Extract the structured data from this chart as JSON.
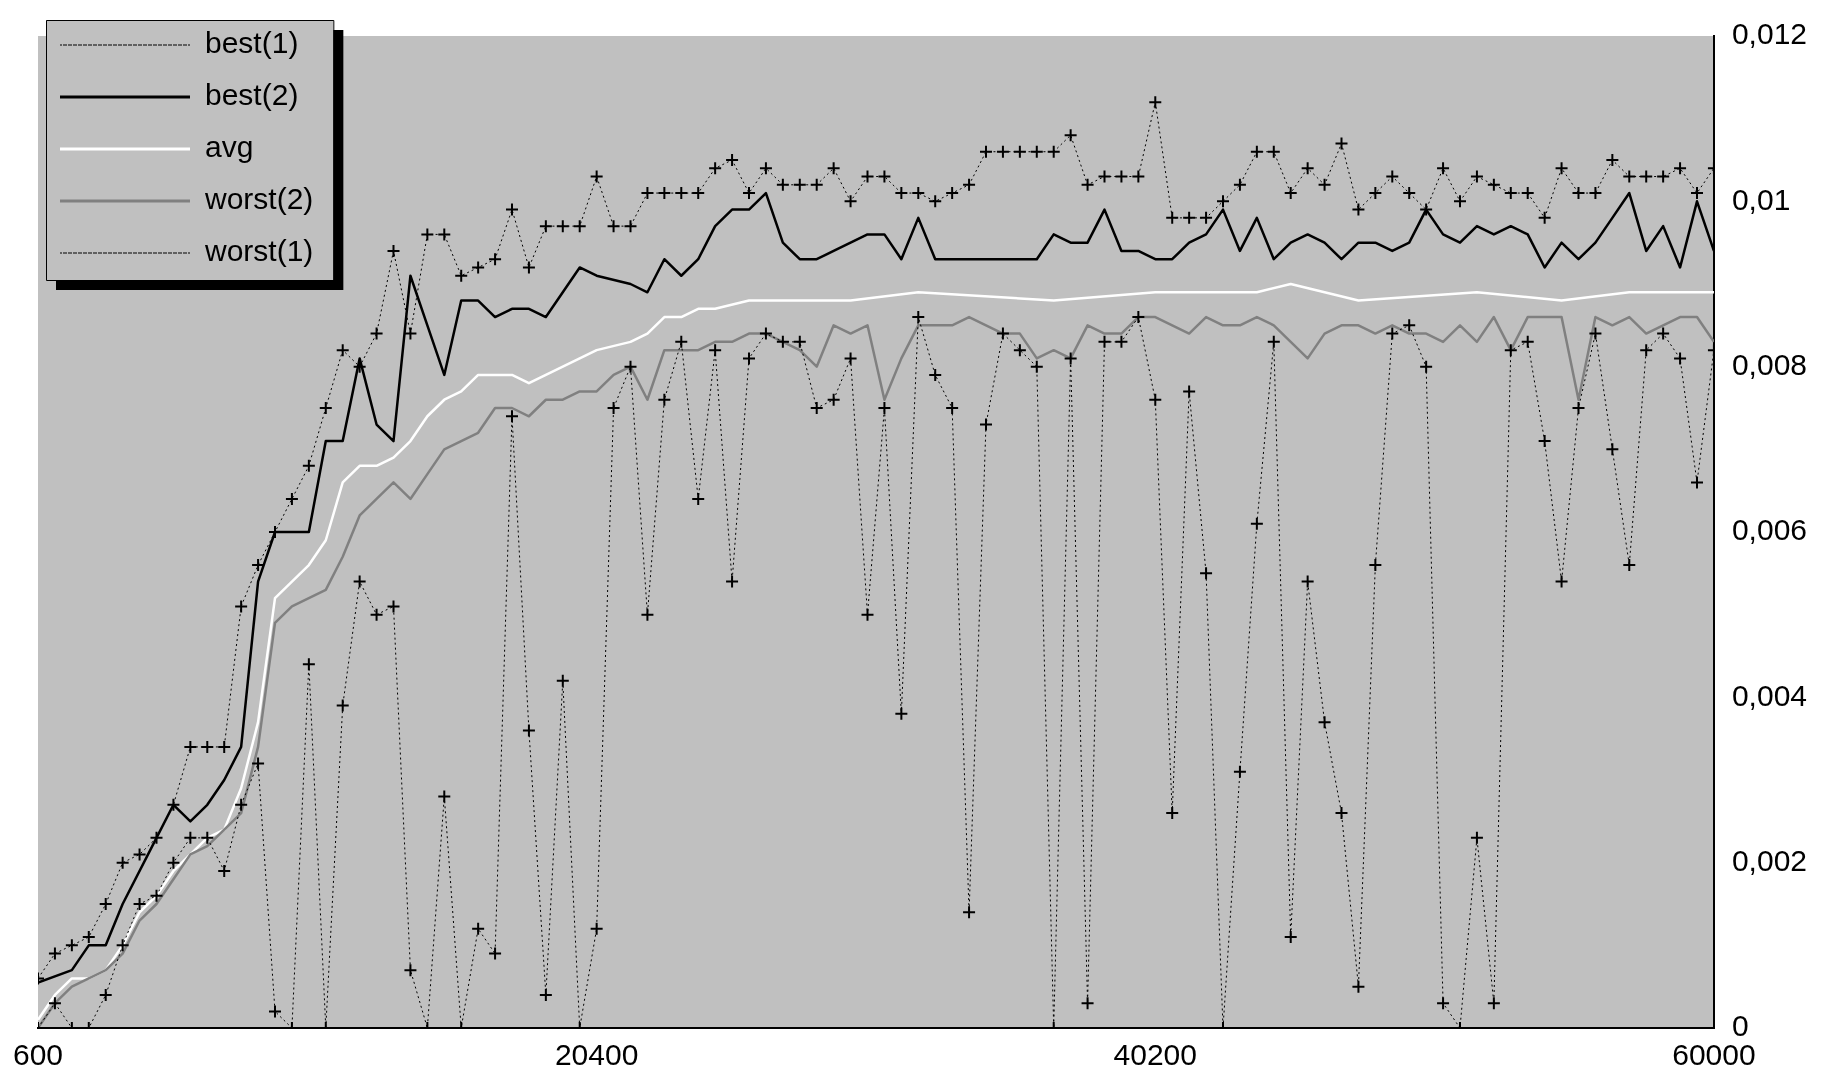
{
  "chart_data": {
    "type": "line",
    "x": [
      600,
      1200,
      1800,
      2400,
      3000,
      3600,
      4200,
      4800,
      5400,
      6000,
      6600,
      7200,
      7800,
      8400,
      9000,
      9600,
      10200,
      10800,
      11400,
      12000,
      12600,
      13200,
      13800,
      14400,
      15000,
      15600,
      16200,
      16800,
      17400,
      18000,
      18600,
      19200,
      19800,
      20400,
      21000,
      21600,
      22200,
      22800,
      23400,
      24000,
      24600,
      25200,
      25800,
      26400,
      27000,
      27600,
      28200,
      28800,
      29400,
      30000,
      30600,
      31200,
      31800,
      32400,
      33000,
      33600,
      34200,
      34800,
      35400,
      36000,
      36600,
      37200,
      37800,
      38400,
      39000,
      39600,
      40200,
      40800,
      41400,
      42000,
      42600,
      43200,
      43800,
      44400,
      45000,
      45600,
      46200,
      46800,
      47400,
      48000,
      48600,
      49200,
      49800,
      50400,
      51000,
      51600,
      52200,
      52800,
      53400,
      54000,
      54600,
      55200,
      55800,
      56400,
      57000,
      57600,
      58200,
      58800,
      59400,
      60000
    ],
    "series": [
      {
        "name": "best(1)",
        "color": "#000000",
        "line_style": "dotted",
        "marker": "cross",
        "values": [
          0.0006,
          0.0009,
          0.001,
          0.0011,
          0.0015,
          0.002,
          0.0021,
          0.0023,
          0.0027,
          0.0034,
          0.0034,
          0.0034,
          0.0051,
          0.0056,
          0.006,
          0.0064,
          0.0068,
          0.0075,
          0.0082,
          0.008,
          0.0084,
          0.0094,
          0.0084,
          0.0096,
          0.0096,
          0.0091,
          0.0092,
          0.0093,
          0.0099,
          0.0092,
          0.0097,
          0.0097,
          0.0097,
          0.0103,
          0.0097,
          0.0097,
          0.0101,
          0.0101,
          0.0101,
          0.0101,
          0.0104,
          0.0105,
          0.0101,
          0.0104,
          0.0102,
          0.0102,
          0.0102,
          0.0104,
          0.01,
          0.0103,
          0.0103,
          0.0101,
          0.0101,
          0.01,
          0.0101,
          0.0102,
          0.0106,
          0.0106,
          0.0106,
          0.0106,
          0.0106,
          0.0108,
          0.0102,
          0.0103,
          0.0103,
          0.0103,
          0.0112,
          0.0098,
          0.0098,
          0.0098,
          0.01,
          0.0102,
          0.0106,
          0.0106,
          0.0101,
          0.0104,
          0.0102,
          0.0107,
          0.0099,
          0.0101,
          0.0103,
          0.0101,
          0.0099,
          0.0104,
          0.01,
          0.0103,
          0.0102,
          0.0101,
          0.0101,
          0.0098,
          0.0104,
          0.0101,
          0.0101,
          0.0105,
          0.0103,
          0.0103,
          0.0103,
          0.0104,
          0.0101,
          0.0104
        ]
      },
      {
        "name": "best(2)",
        "color": "#000000",
        "line_style": "solid",
        "marker": "none",
        "x": [
          600,
          1800,
          2400,
          3000,
          3600,
          4800,
          5400,
          6000,
          6600,
          7200,
          7800,
          8400,
          9000,
          9600,
          10200,
          10800,
          11400,
          12000,
          12600,
          13200,
          13800,
          14400,
          15000,
          15600,
          16200,
          16800,
          17400,
          18000,
          18600,
          19200,
          19800,
          20400,
          21600,
          22200,
          22800,
          23400,
          24000,
          24600,
          25200,
          25800,
          26400,
          27000,
          27600,
          28200,
          28800,
          29400,
          30000,
          30600,
          31200,
          31800,
          32400,
          33000,
          33600,
          34200,
          36000,
          36600,
          37200,
          37800,
          38400,
          39000,
          39600,
          40200,
          40800,
          41400,
          42000,
          42600,
          43200,
          43800,
          44400,
          45000,
          45600,
          46200,
          46800,
          47400,
          48000,
          48600,
          49200,
          49800,
          50400,
          51000,
          51600,
          52200,
          52800,
          53400,
          54000,
          54600,
          55200,
          55800,
          56400,
          57000,
          57600,
          58200,
          58800,
          59400,
          60000
        ],
        "values": [
          0.00055,
          0.0007,
          0.001,
          0.001,
          0.0015,
          0.0023,
          0.0027,
          0.0025,
          0.0027,
          0.003,
          0.0034,
          0.0054,
          0.006,
          0.006,
          0.006,
          0.0071,
          0.0071,
          0.0081,
          0.0073,
          0.0071,
          0.0091,
          0.0085,
          0.0079,
          0.0088,
          0.0088,
          0.0086,
          0.0087,
          0.0087,
          0.0086,
          0.0089,
          0.0092,
          0.0091,
          0.009,
          0.0089,
          0.0093,
          0.0091,
          0.0093,
          0.0097,
          0.0099,
          0.0099,
          0.0101,
          0.0095,
          0.0093,
          0.0093,
          0.0094,
          0.0095,
          0.0096,
          0.0096,
          0.0093,
          0.0098,
          0.0093,
          0.0093,
          0.0093,
          0.0093,
          0.0093,
          0.0096,
          0.0095,
          0.0095,
          0.0099,
          0.0094,
          0.0094,
          0.0093,
          0.0093,
          0.0095,
          0.0096,
          0.0099,
          0.0094,
          0.0098,
          0.0093,
          0.0095,
          0.0096,
          0.0095,
          0.0093,
          0.0095,
          0.0095,
          0.0094,
          0.0095,
          0.0099,
          0.0096,
          0.0095,
          0.0097,
          0.0096,
          0.0097,
          0.0096,
          0.0092,
          0.0095,
          0.0093,
          0.0095,
          0.0098,
          0.0101,
          0.0094,
          0.0097,
          0.0092,
          0.01,
          0.0094
        ]
      },
      {
        "name": "avg",
        "color": "#ffffff",
        "line_style": "solid",
        "marker": "none",
        "x": [
          600,
          1200,
          1800,
          2400,
          3000,
          3600,
          4200,
          4800,
          5400,
          6000,
          6600,
          7200,
          7800,
          8400,
          9000,
          9600,
          10200,
          10800,
          11400,
          12000,
          12600,
          13200,
          13800,
          14400,
          15000,
          15600,
          16200,
          16800,
          17400,
          18000,
          18600,
          19200,
          19800,
          20400,
          21600,
          22200,
          22800,
          23400,
          24000,
          24600,
          25800,
          27000,
          28200,
          29400,
          31800,
          36600,
          40200,
          43800,
          45000,
          46200,
          47400,
          51600,
          54600,
          57000,
          58200,
          60000
        ],
        "values": [
          0.0001,
          0.0004,
          0.0006,
          0.0006,
          0.0007,
          0.001,
          0.0014,
          0.0016,
          0.0019,
          0.0021,
          0.0023,
          0.0024,
          0.0029,
          0.0037,
          0.0052,
          0.0054,
          0.0056,
          0.0059,
          0.0066,
          0.0068,
          0.0068,
          0.0069,
          0.0071,
          0.0074,
          0.0076,
          0.0077,
          0.0079,
          0.0079,
          0.0079,
          0.0078,
          0.0079,
          0.008,
          0.0081,
          0.0082,
          0.0083,
          0.0084,
          0.0086,
          0.0086,
          0.0087,
          0.0087,
          0.0088,
          0.0088,
          0.0088,
          0.0088,
          0.0089,
          0.0088,
          0.0089,
          0.0089,
          0.009,
          0.0089,
          0.0088,
          0.0089,
          0.0088,
          0.0089,
          0.0089,
          0.0089
        ]
      },
      {
        "name": "worst(2)",
        "color": "#808080",
        "line_style": "solid",
        "marker": "none",
        "values": [
          0,
          0.0003,
          0.0005,
          0.0006,
          0.0007,
          0.0009,
          0.0013,
          0.0015,
          0.0018,
          0.0021,
          0.0022,
          0.0024,
          0.0026,
          0.0034,
          0.0049,
          0.0051,
          0.0052,
          0.0053,
          0.0057,
          0.0062,
          0.0064,
          0.0066,
          0.0064,
          0.0067,
          0.007,
          0.0071,
          0.0072,
          0.0075,
          0.0075,
          0.0074,
          0.0076,
          0.0076,
          0.0077,
          0.0077,
          0.0079,
          0.008,
          0.0076,
          0.0082,
          0.0082,
          0.0082,
          0.0083,
          0.0083,
          0.0084,
          0.0084,
          0.0083,
          0.0082,
          0.008,
          0.0085,
          0.0084,
          0.0085,
          0.0076,
          0.0081,
          0.0085,
          0.0085,
          0.0085,
          0.0086,
          0.0085,
          0.0084,
          0.0084,
          0.0081,
          0.0082,
          0.0081,
          0.0085,
          0.0084,
          0.0084,
          0.0086,
          0.0086,
          0.0085,
          0.0084,
          0.0086,
          0.0085,
          0.0085,
          0.0086,
          0.0085,
          0.0083,
          0.0081,
          0.0084,
          0.0085,
          0.0085,
          0.0084,
          0.0085,
          0.0084,
          0.0084,
          0.0083,
          0.0085,
          0.0083,
          0.0086,
          0.0082,
          0.0086,
          0.0086,
          0.0086,
          0.0076,
          0.0086,
          0.0085,
          0.0086,
          0.0084,
          0.0085,
          0.0086,
          0.0086,
          0.0083
        ]
      },
      {
        "name": "worst(1)",
        "color": "#000000",
        "line_style": "dotted",
        "marker": "cross",
        "values": [
          0,
          0.0003,
          0,
          0,
          0.0004,
          0.001,
          0.0015,
          0.0016,
          0.002,
          0.0023,
          0.0023,
          0.0019,
          0.0027,
          0.0032,
          0.0002,
          0,
          0.0044,
          0,
          0.0039,
          0.0054,
          0.005,
          0.0051,
          0.0007,
          0,
          0.0028,
          0,
          0.0012,
          0.0009,
          0.0074,
          0.0036,
          0.0004,
          0.0042,
          0,
          0.0012,
          0.0075,
          0.008,
          0.005,
          0.0076,
          0.0083,
          0.0064,
          0.0082,
          0.0054,
          0.0081,
          0.0084,
          0.0083,
          0.0083,
          0.0075,
          0.0076,
          0.0081,
          0.005,
          0.0075,
          0.0038,
          0.0086,
          0.0079,
          0.0075,
          0.0014,
          0.0073,
          0.0084,
          0.0082,
          0.008,
          0,
          0.0081,
          0.0003,
          0.0083,
          0.0083,
          0.0086,
          0.0076,
          0.0026,
          0.0077,
          0.0055,
          0,
          0.0031,
          0.0061,
          0.0083,
          0.0011,
          0.0054,
          0.0037,
          0.0026,
          0.0005,
          0.0056,
          0.0084,
          0.0085,
          0.008,
          0.0003,
          0,
          0.0023,
          0.0003,
          0.0082,
          0.0083,
          0.0071,
          0.0054,
          0.0075,
          0.0084,
          0.007,
          0.0056,
          0.0082,
          0.0084,
          0.0081,
          0.0066,
          0.0082
        ]
      }
    ],
    "xlim": [
      600,
      60000
    ],
    "xticks": [
      600,
      20400,
      40200,
      60000
    ],
    "ylim": [
      0,
      0.012
    ],
    "yticks": [
      0,
      {
        "value": 0.002,
        "label": "0,002"
      },
      {
        "value": 0.004,
        "label": "0,004"
      },
      {
        "value": 0.006,
        "label": "0,006"
      },
      {
        "value": 0.008,
        "label": "0,008"
      },
      {
        "value": 0.01,
        "label": "0,01"
      },
      {
        "value": 0.012,
        "label": "0,012"
      }
    ],
    "legend": "top left"
  }
}
